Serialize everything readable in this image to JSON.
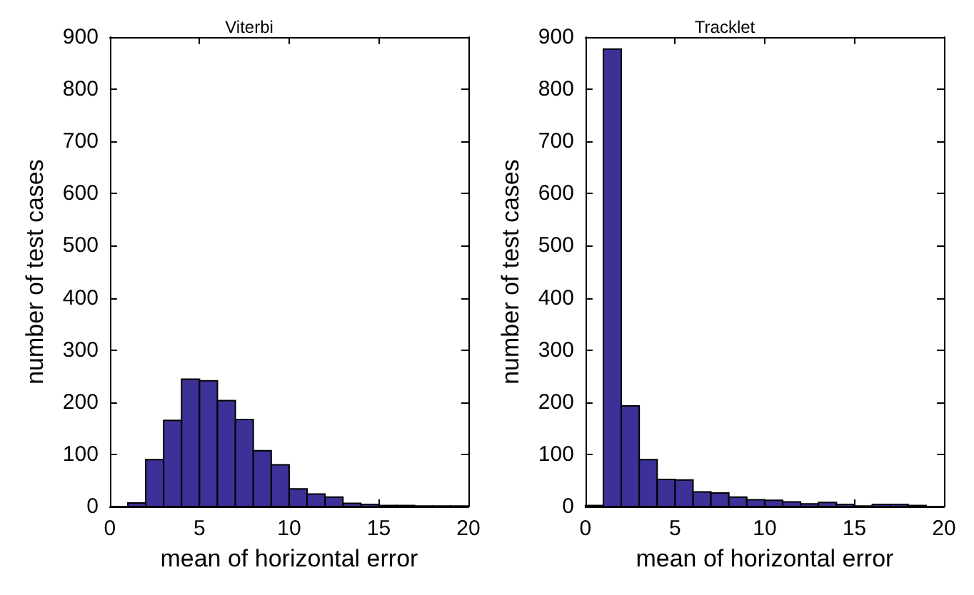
{
  "chart_data": [
    {
      "type": "histogram",
      "title": "Viterbi",
      "xlabel": "mean of horizontal error",
      "ylabel": "number of test cases",
      "bins": [
        0,
        1,
        2,
        3,
        4,
        5,
        6,
        7,
        8,
        9,
        10,
        11,
        12,
        13,
        14,
        15,
        16,
        17,
        18,
        19,
        20
      ],
      "values": [
        0,
        7,
        90,
        165,
        244,
        241,
        203,
        167,
        107,
        80,
        34,
        24,
        18,
        6,
        4,
        2,
        2,
        1,
        1,
        1
      ],
      "color": "#3b3196",
      "xlim": [
        0,
        20
      ],
      "xticks": [
        0,
        5,
        10,
        15,
        20
      ],
      "ylim": [
        0,
        900
      ],
      "yticks": [
        0,
        100,
        200,
        300,
        400,
        500,
        600,
        700,
        800,
        900
      ],
      "grid": false
    },
    {
      "type": "histogram",
      "title": "Tracklet",
      "xlabel": "mean of horizontal error",
      "ylabel": "number of test cases",
      "bins": [
        0,
        1,
        2,
        3,
        4,
        5,
        6,
        7,
        8,
        9,
        10,
        11,
        12,
        13,
        14,
        15,
        16,
        17,
        18,
        19,
        20
      ],
      "values": [
        2,
        877,
        193,
        90,
        52,
        51,
        28,
        26,
        18,
        13,
        12,
        9,
        5,
        8,
        4,
        1,
        4,
        4,
        2,
        0
      ],
      "color": "#3b3196",
      "xlim": [
        0,
        20
      ],
      "xticks": [
        0,
        5,
        10,
        15,
        20
      ],
      "ylim": [
        0,
        900
      ],
      "yticks": [
        0,
        100,
        200,
        300,
        400,
        500,
        600,
        700,
        800,
        900
      ],
      "grid": false
    }
  ]
}
